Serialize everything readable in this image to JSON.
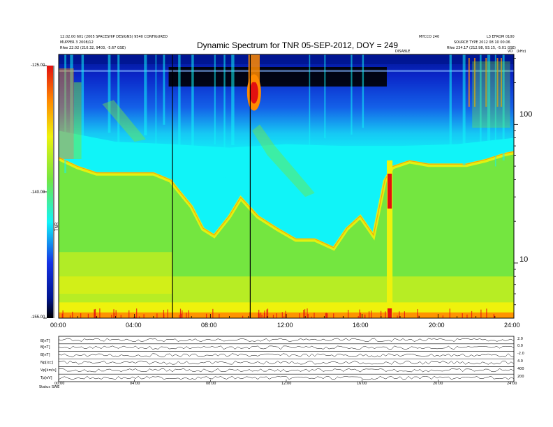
{
  "header": {
    "top_left_line1": "12.02.00 601 (2005 SPACESHIP DESIGNS) 9540 CONFIGURED",
    "top_left_line2": "MUPPER 3 2008/12",
    "top_left_line3": "Rfee  22.02 (210.32, 9403, -5.67 GSE)",
    "top_center_right": "MYCCO 240",
    "top_right_line1": "L3 EFROM 0100",
    "top_right_line2": "SOURCE TYPE 2012 08 10 00.06",
    "top_right_line3": "Rfee  234.17 (212.98, 93.15, -5.01 GSE)",
    "right_corner_label": "(kHz)",
    "mid_label": "DISABLE",
    "right_small_label": "VO"
  },
  "chart_data": {
    "type": "heatmap",
    "title": "Dynamic Spectrum for TNR 05-SEP-2012, DOY = 249",
    "xlabel": "",
    "ylabel": "",
    "x_ticks": [
      "00:00",
      "04:00",
      "08:00",
      "12:00",
      "16:00",
      "20:00",
      "24:00"
    ],
    "xlim_hours": [
      0,
      24
    ],
    "y_scale": "log",
    "y_ticks": [
      "100",
      "10"
    ],
    "ylim_khz": [
      4,
      320
    ],
    "colorbar": {
      "label": "TNR",
      "ticks": [
        "-125.00",
        "-140.00",
        "-155.00"
      ],
      "range": [
        -155,
        -125
      ]
    },
    "vertical_markers_hours": [
      6.0,
      10.1
    ],
    "colors": {
      "black": "#000000",
      "dark_blue": "#001590",
      "blue": "#1432e6",
      "cyan": "#10f4f8",
      "green": "#74e640",
      "yellow": "#eef20c",
      "orange": "#ff8a00",
      "red": "#e21010"
    },
    "features": [
      {
        "name": "background-bands",
        "hours": [
          0,
          24
        ],
        "khz_low": [
          5,
          20
        ],
        "level_db": -148
      },
      {
        "name": "burst-a",
        "hour_start": 10.0,
        "hour_end": 10.6,
        "khz_peak": 170,
        "level_db": -126
      },
      {
        "name": "burst-b",
        "hour_start": 17.3,
        "hour_end": 17.6,
        "khz_peak": 35,
        "level_db": -126
      }
    ]
  },
  "bottom_panels": {
    "labels": [
      "B[nT]",
      "B[nT]",
      "B[nT]",
      "Np[/cc]",
      "Vp[km/s]",
      "Tp[eV]"
    ],
    "footer_left": "Status",
    "footer_label": "SWE",
    "x_ticks": [
      "00:00",
      "04:00",
      "08:00",
      "12:00",
      "16:00",
      "20:00",
      "24:00"
    ],
    "right_values": [
      "2.0",
      "0.0",
      "-2.0",
      "4.0",
      "400",
      "200"
    ]
  }
}
